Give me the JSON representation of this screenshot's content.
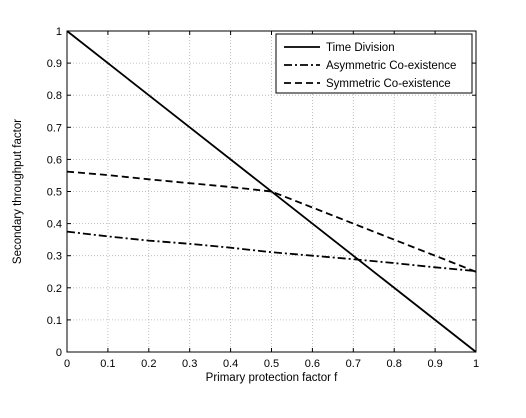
{
  "chart_data": {
    "type": "line",
    "title": "",
    "xlabel": "Primary protection factor f",
    "ylabel": "Secondary throughput factor",
    "xlim": [
      0,
      1
    ],
    "ylim": [
      0,
      1
    ],
    "x_ticks": [
      "0",
      "0.1",
      "0.2",
      "0.3",
      "0.4",
      "0.5",
      "0.6",
      "0.7",
      "0.8",
      "0.9",
      "1"
    ],
    "y_ticks": [
      "0",
      "0.1",
      "0.2",
      "0.3",
      "0.4",
      "0.5",
      "0.6",
      "0.7",
      "0.8",
      "0.9",
      "1"
    ],
    "grid": true,
    "legend_position": "top-right",
    "series": [
      {
        "name": "Time Division",
        "line_style": "solid",
        "color": "#000000",
        "points": [
          [
            0,
            1
          ],
          [
            1,
            0
          ]
        ]
      },
      {
        "name": "Asymmetric Co-existence",
        "line_style": "dash-dot",
        "color": "#000000",
        "points": [
          [
            0,
            0.375
          ],
          [
            0.1,
            0.36
          ],
          [
            0.2,
            0.347
          ],
          [
            0.3,
            0.337
          ],
          [
            0.4,
            0.325
          ],
          [
            0.5,
            0.311
          ],
          [
            0.6,
            0.3
          ],
          [
            0.7,
            0.289
          ],
          [
            0.8,
            0.277
          ],
          [
            0.9,
            0.264
          ],
          [
            1,
            0.252
          ]
        ]
      },
      {
        "name": "Symmetric Co-existence",
        "line_style": "dashed",
        "color": "#000000",
        "points": [
          [
            0,
            0.562
          ],
          [
            0.1,
            0.551
          ],
          [
            0.2,
            0.538
          ],
          [
            0.3,
            0.526
          ],
          [
            0.4,
            0.514
          ],
          [
            0.5,
            0.5
          ],
          [
            0.6,
            0.45
          ],
          [
            0.7,
            0.4
          ],
          [
            0.8,
            0.35
          ],
          [
            0.9,
            0.3
          ],
          [
            1,
            0.25
          ]
        ]
      }
    ]
  }
}
